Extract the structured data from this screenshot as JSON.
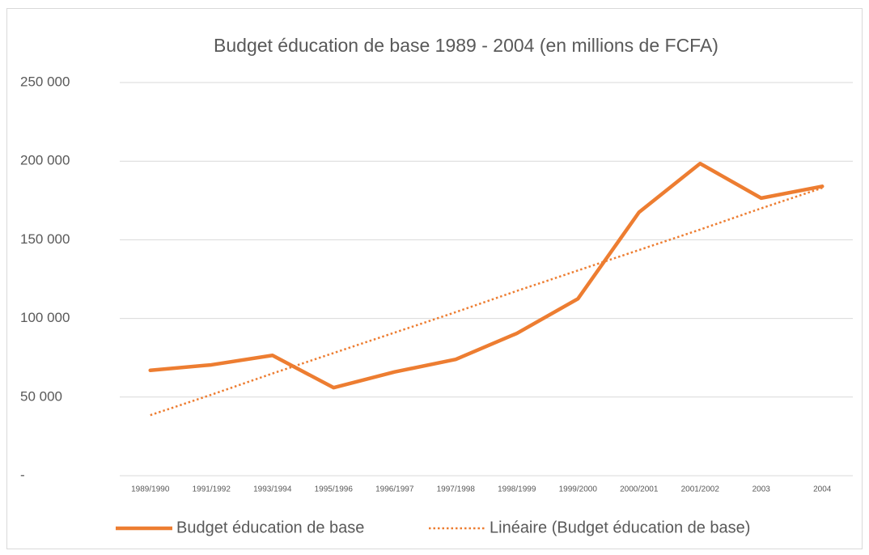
{
  "chart_data": {
    "type": "line",
    "title": "Budget éducation de base 1989 - 2004 (en millions de FCFA)",
    "categories": [
      "1989/1990",
      "1991/1992",
      "1993/1994",
      "1995/1996",
      "1996/1997",
      "1997/1998",
      "1998/1999",
      "1999/2000",
      "2000/2001",
      "2001/2002",
      "2003",
      "2004"
    ],
    "series": [
      {
        "name": "Budget éducation de base",
        "color": "#ed7d31",
        "line_style": "solid",
        "values": [
          67000,
          70500,
          76500,
          56000,
          66000,
          74000,
          90500,
          112500,
          167500,
          198500,
          176500,
          184000
        ]
      },
      {
        "name": "Linéaire (Budget éducation de base)",
        "color": "#ed7d31",
        "line_style": "dotted",
        "values": [
          38500,
          51500,
          65000,
          78000,
          91000,
          104000,
          117500,
          130500,
          143500,
          156500,
          170000,
          183000
        ]
      }
    ],
    "ylim": [
      0,
      250000
    ],
    "yticks": [
      {
        "value": 0,
        "label": "-"
      },
      {
        "value": 50000,
        "label": "50 000"
      },
      {
        "value": 100000,
        "label": "100 000"
      },
      {
        "value": 150000,
        "label": "150 000"
      },
      {
        "value": 200000,
        "label": "200 000"
      },
      {
        "value": 250000,
        "label": "250 000"
      }
    ],
    "grid": true,
    "legend": "bottom"
  }
}
